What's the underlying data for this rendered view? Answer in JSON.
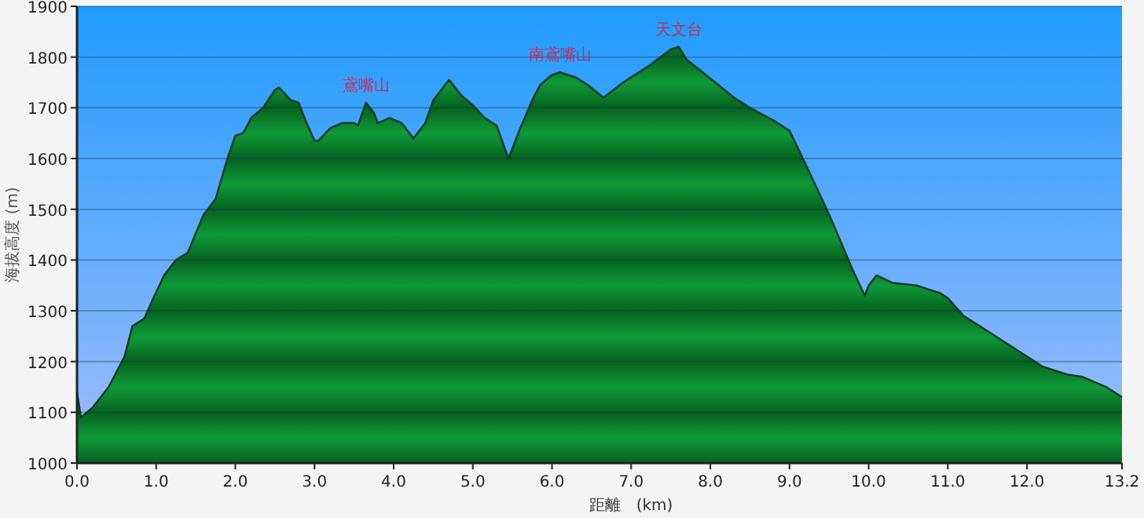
{
  "chart_data": {
    "type": "area",
    "xlabel": "距離　(km)",
    "ylabel": "海拔高度 (m)",
    "x": [
      0.0,
      0.05,
      0.2,
      0.4,
      0.6,
      0.7,
      0.85,
      0.95,
      1.1,
      1.25,
      1.4,
      1.6,
      1.75,
      1.9,
      2.0,
      2.1,
      2.2,
      2.35,
      2.5,
      2.55,
      2.7,
      2.8,
      2.9,
      3.0,
      3.05,
      3.2,
      3.35,
      3.5,
      3.55,
      3.65,
      3.75,
      3.8,
      3.95,
      4.1,
      4.25,
      4.4,
      4.5,
      4.7,
      4.85,
      5.0,
      5.15,
      5.3,
      5.45,
      5.6,
      5.75,
      5.85,
      6.0,
      6.1,
      6.3,
      6.45,
      6.65,
      6.9,
      7.2,
      7.5,
      7.6,
      7.7,
      7.9,
      8.1,
      8.3,
      8.5,
      8.8,
      9.0,
      9.2,
      9.5,
      9.8,
      9.95,
      10.0,
      10.1,
      10.3,
      10.6,
      10.9,
      11.0,
      11.2,
      11.5,
      11.8,
      12.0,
      12.2,
      12.5,
      12.7,
      13.0,
      13.2
    ],
    "series": [
      {
        "color": "#0f9a38",
        "values": [
          1140,
          1090,
          1110,
          1150,
          1210,
          1270,
          1285,
          1320,
          1370,
          1400,
          1415,
          1490,
          1520,
          1600,
          1645,
          1650,
          1680,
          1700,
          1735,
          1740,
          1715,
          1710,
          1670,
          1635,
          1635,
          1660,
          1670,
          1670,
          1665,
          1710,
          1690,
          1670,
          1680,
          1670,
          1640,
          1670,
          1715,
          1755,
          1725,
          1705,
          1680,
          1665,
          1600,
          1660,
          1715,
          1745,
          1765,
          1770,
          1760,
          1745,
          1720,
          1750,
          1780,
          1815,
          1820,
          1795,
          1770,
          1745,
          1720,
          1700,
          1675,
          1655,
          1590,
          1490,
          1380,
          1330,
          1350,
          1370,
          1355,
          1350,
          1335,
          1325,
          1290,
          1260,
          1230,
          1210,
          1190,
          1175,
          1170,
          1150,
          1130
        ]
      }
    ],
    "xlim": [
      0,
      13.2
    ],
    "xticks": [
      {
        "value": 0,
        "label": "0.0"
      },
      {
        "value": 1,
        "label": "1.0"
      },
      {
        "value": 2,
        "label": "2.0"
      },
      {
        "value": 3,
        "label": "3.0"
      },
      {
        "value": 4,
        "label": "4.0"
      },
      {
        "value": 5,
        "label": "5.0"
      },
      {
        "value": 6,
        "label": "6.0"
      },
      {
        "value": 7,
        "label": "7.0"
      },
      {
        "value": 8,
        "label": "8.0"
      },
      {
        "value": 9,
        "label": "9.0"
      },
      {
        "value": 10,
        "label": "10.0"
      },
      {
        "value": 11,
        "label": "11.0"
      },
      {
        "value": 12,
        "label": "12.0"
      },
      {
        "value": 13.2,
        "label": "13.2"
      }
    ],
    "ylim": [
      1000,
      1900
    ],
    "yticks": [
      1000,
      1100,
      1200,
      1300,
      1400,
      1500,
      1600,
      1700,
      1800,
      1900
    ],
    "grid": "y",
    "annotations": [
      {
        "text": "鳶嘴山",
        "x": 3.65,
        "y": 1710
      },
      {
        "text": "南鳶嘴山",
        "x": 6.1,
        "y": 1770
      },
      {
        "text": "天文台",
        "x": 7.6,
        "y": 1820
      }
    ]
  }
}
